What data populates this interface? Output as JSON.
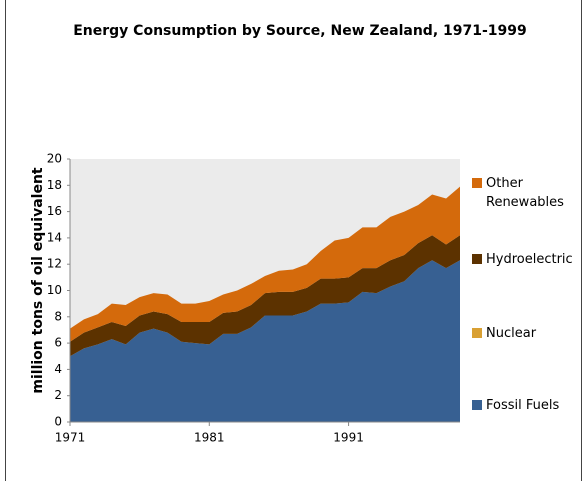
{
  "chart_data": {
    "type": "area",
    "stacked": true,
    "title": "Energy Consumption by Source, New Zealand, 1971-1999",
    "y_label": "million tons of oil equivalent",
    "x": [
      1971,
      1972,
      1973,
      1974,
      1975,
      1976,
      1977,
      1978,
      1979,
      1980,
      1981,
      1982,
      1983,
      1984,
      1985,
      1986,
      1987,
      1988,
      1989,
      1990,
      1991,
      1992,
      1993,
      1994,
      1995,
      1996,
      1997,
      1998,
      1999
    ],
    "xlim": [
      1971,
      1999
    ],
    "xticks": [
      1971,
      1981,
      1991
    ],
    "ylim": [
      0,
      20
    ],
    "yticks": [
      0,
      2,
      4,
      6,
      8,
      10,
      12,
      14,
      16,
      18,
      20
    ],
    "series": [
      {
        "name": "Fossil Fuels",
        "color": "#376092",
        "values": [
          5.0,
          5.6,
          5.9,
          6.3,
          5.9,
          6.8,
          7.1,
          6.8,
          6.1,
          6.0,
          5.9,
          6.7,
          6.7,
          7.2,
          8.1,
          8.1,
          8.1,
          8.4,
          9.0,
          9.0,
          9.1,
          9.9,
          9.8,
          10.3,
          10.7,
          11.7,
          12.3,
          11.7,
          12.3
        ]
      },
      {
        "name": "Nuclear",
        "color": "#d9a033",
        "values": [
          0,
          0,
          0,
          0,
          0,
          0,
          0,
          0,
          0,
          0,
          0,
          0,
          0,
          0,
          0,
          0,
          0,
          0,
          0,
          0,
          0,
          0,
          0,
          0,
          0,
          0,
          0,
          0,
          0
        ]
      },
      {
        "name": "Hydroelectric",
        "color": "#5c3200",
        "values": [
          1.1,
          1.2,
          1.3,
          1.3,
          1.4,
          1.3,
          1.3,
          1.4,
          1.5,
          1.6,
          1.7,
          1.6,
          1.7,
          1.7,
          1.7,
          1.8,
          1.8,
          1.8,
          1.9,
          1.9,
          1.9,
          1.8,
          1.9,
          2.0,
          2.0,
          1.9,
          1.9,
          1.8,
          1.9
        ]
      },
      {
        "name": "Other Renewables",
        "color": "#d46a0c",
        "values": [
          1.0,
          1.0,
          1.0,
          1.4,
          1.6,
          1.4,
          1.4,
          1.5,
          1.4,
          1.4,
          1.6,
          1.4,
          1.6,
          1.6,
          1.3,
          1.6,
          1.7,
          1.8,
          2.1,
          2.9,
          3.0,
          3.1,
          3.1,
          3.3,
          3.3,
          2.9,
          3.1,
          3.5,
          3.7
        ]
      }
    ],
    "legend": "right",
    "plot_background": "#ebebeb"
  }
}
